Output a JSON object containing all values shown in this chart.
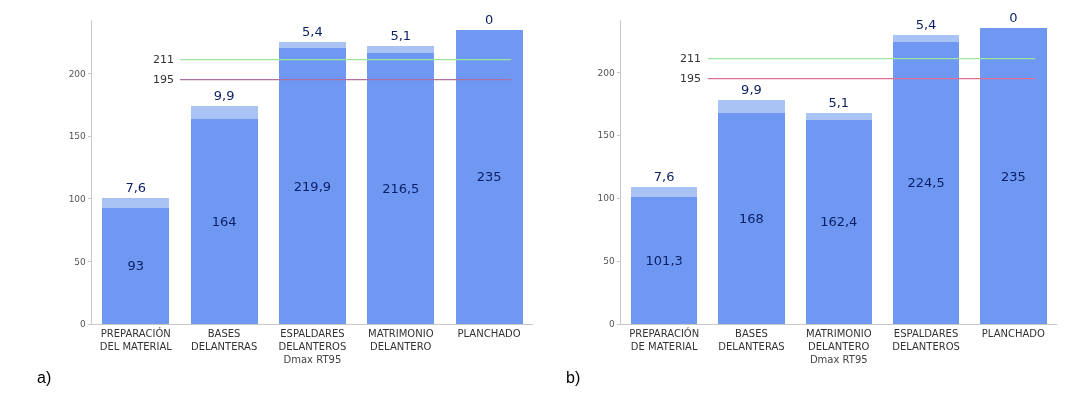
{
  "chart_data": [
    {
      "type": "bar",
      "stacked": true,
      "xlabel": "Dmax RT95",
      "annotations": [
        "a)"
      ],
      "categories": [
        "PREPARACIÓN\nDEL MATERIAL",
        "BASES\nDELANTERAS",
        "ESPALDARES\nDELANTEROS",
        "MATRIMONIO\nDELANTERO",
        "PLANCHADO"
      ],
      "series": [
        {
          "color": "#6f98f2",
          "values": [
            93,
            164,
            219.9,
            216.5,
            235
          ],
          "value_labels": [
            "93",
            "164",
            "219,9",
            "216,5",
            "235"
          ]
        },
        {
          "color": "#a9c3f5",
          "values": [
            7.6,
            9.9,
            5.4,
            5.1,
            0
          ],
          "value_labels": [
            "7,6",
            "9,9",
            "5,4",
            "5,1",
            "0"
          ]
        }
      ],
      "ylim": [
        0,
        243
      ],
      "yticks": [
        0,
        50,
        100,
        150,
        200
      ],
      "ref_lines": [
        {
          "axis": "y",
          "value": 211,
          "label": "211",
          "color": "#9ee39e"
        },
        {
          "axis": "y",
          "value": 195,
          "label": "195",
          "color": "#b070a0"
        }
      ]
    },
    {
      "type": "bar",
      "stacked": true,
      "xlabel": "Dmax RT95",
      "annotations": [
        "b)"
      ],
      "categories": [
        "PREPARACIÓN\nDE MATERIAL",
        "BASES\nDELANTERAS",
        "MATRIMONIO\nDELANTERO",
        "ESPALDARES\nDELANTEROS",
        "PLANCHADO"
      ],
      "series": [
        {
          "color": "#6f98f2",
          "values": [
            101.3,
            168,
            162.4,
            224.5,
            235
          ],
          "value_labels": [
            "101,3",
            "168",
            "162,4",
            "224,5",
            "235"
          ]
        },
        {
          "color": "#a9c3f5",
          "values": [
            7.6,
            9.9,
            5.1,
            5.4,
            0
          ],
          "value_labels": [
            "7,6",
            "9,9",
            "5,1",
            "5,4",
            "0"
          ]
        }
      ],
      "ylim": [
        0,
        242
      ],
      "yticks": [
        0,
        50,
        100,
        150,
        200
      ],
      "ref_lines": [
        {
          "axis": "y",
          "value": 211,
          "label": "211",
          "color": "#9ee39e"
        },
        {
          "axis": "y",
          "value": 195,
          "label": "195",
          "color": "#e07090"
        }
      ]
    }
  ]
}
